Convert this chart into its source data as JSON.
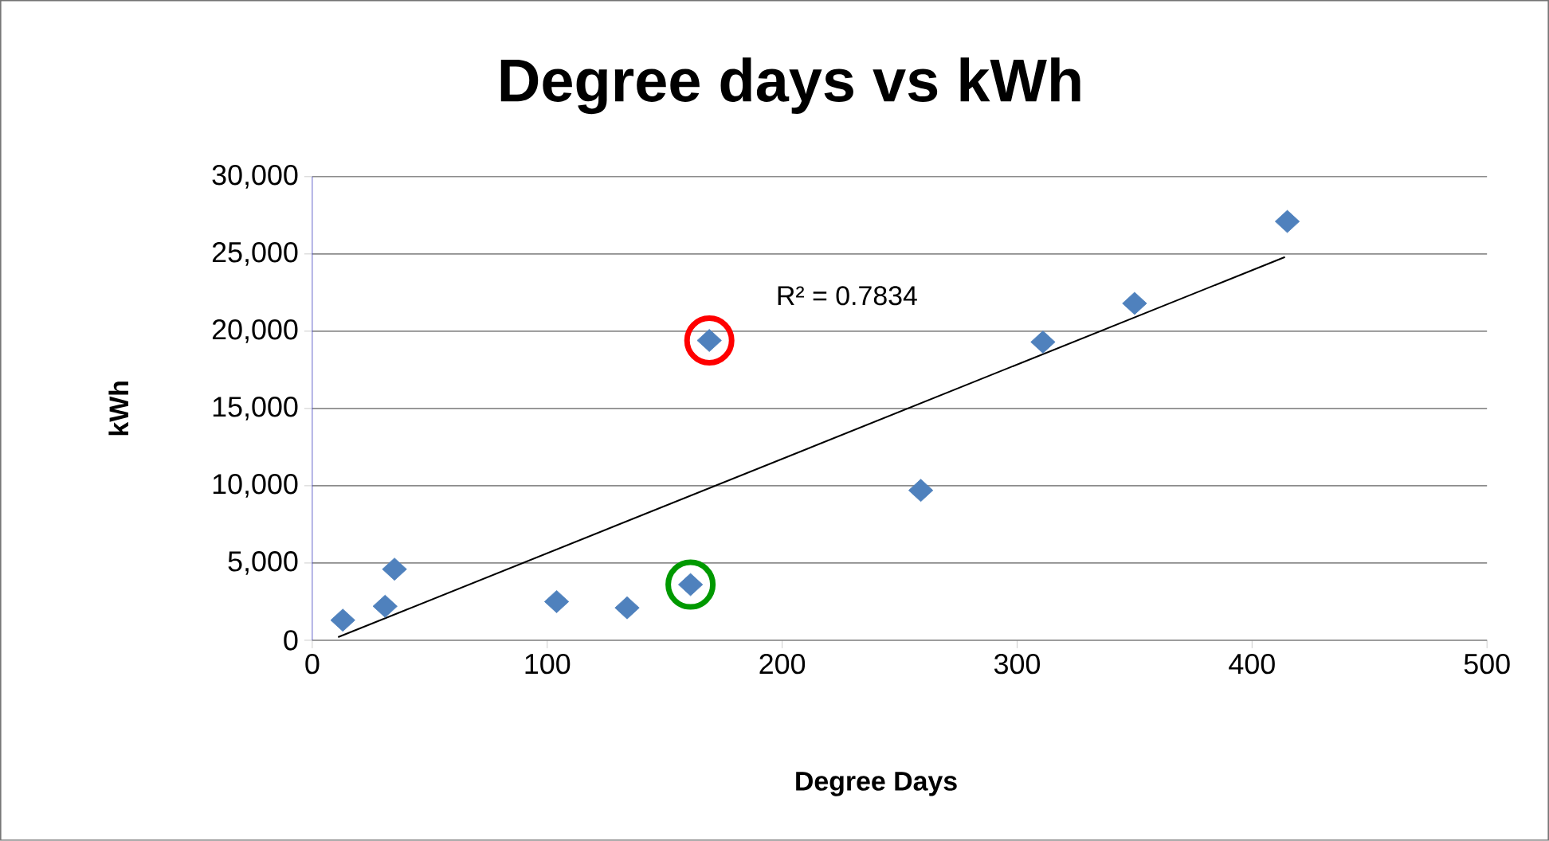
{
  "chart_data": {
    "type": "scatter",
    "title": "Degree days vs kWh",
    "xlabel": "Degree Days",
    "ylabel": "kWh",
    "xlim": [
      0,
      500
    ],
    "xticks": [
      0,
      100,
      200,
      300,
      400,
      500
    ],
    "ylim": [
      0,
      30000
    ],
    "yticks": [
      {
        "value": 0,
        "label": "0"
      },
      {
        "value": 5000,
        "label": "5,000"
      },
      {
        "value": 10000,
        "label": "10,000"
      },
      {
        "value": 15000,
        "label": "15,000"
      },
      {
        "value": 20000,
        "label": "20,000"
      },
      {
        "value": 25000,
        "label": "25,000"
      },
      {
        "value": 30000,
        "label": "30,000"
      }
    ],
    "grid": "y",
    "series": [
      {
        "marker": "diamond",
        "color": "#4f81bd",
        "x": [
          13,
          31,
          35,
          104,
          134,
          161,
          169,
          259,
          311,
          350,
          415
        ],
        "values": [
          1300,
          2200,
          4600,
          2500,
          2100,
          3600,
          19400,
          9700,
          19300,
          21800,
          27100
        ]
      },
      {
        "type": "line",
        "marker": "none",
        "color": "#000000",
        "x": [
          11,
          414
        ],
        "values": [
          200,
          24800
        ]
      }
    ],
    "annotations": [
      "R² = 0.7834"
    ]
  }
}
